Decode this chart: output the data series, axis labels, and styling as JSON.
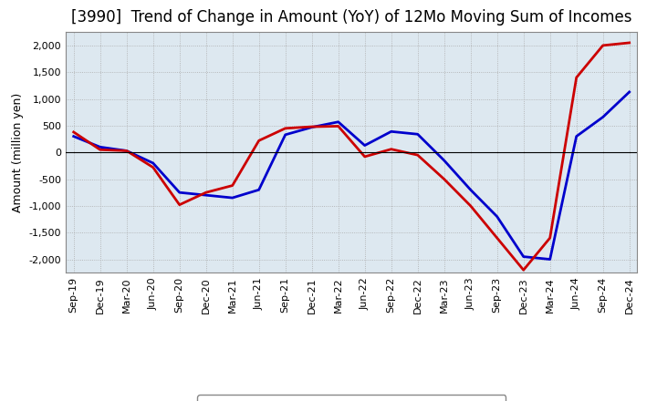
{
  "title": "[3990]  Trend of Change in Amount (YoY) of 12Mo Moving Sum of Incomes",
  "ylabel": "Amount (million yen)",
  "x_labels": [
    "Sep-19",
    "Dec-19",
    "Mar-20",
    "Jun-20",
    "Sep-20",
    "Dec-20",
    "Mar-21",
    "Jun-21",
    "Sep-21",
    "Dec-21",
    "Mar-22",
    "Jun-22",
    "Sep-22",
    "Dec-22",
    "Mar-23",
    "Jun-23",
    "Sep-23",
    "Dec-23",
    "Mar-24",
    "Jun-24",
    "Sep-24",
    "Dec-24"
  ],
  "ordinary_income": [
    300,
    100,
    30,
    -200,
    -750,
    -800,
    -850,
    -700,
    330,
    470,
    570,
    130,
    390,
    340,
    -150,
    -700,
    -1200,
    -1950,
    -2000,
    300,
    660,
    1130
  ],
  "net_income": [
    380,
    50,
    30,
    -280,
    -980,
    -750,
    -620,
    220,
    450,
    480,
    490,
    -80,
    60,
    -50,
    -500,
    -1000,
    -1600,
    -2200,
    -1600,
    1400,
    2000,
    2050
  ],
  "ordinary_color": "#0000cc",
  "net_color": "#cc0000",
  "ylim": [
    -2250,
    2250
  ],
  "yticks": [
    -2000,
    -1500,
    -1000,
    -500,
    0,
    500,
    1000,
    1500,
    2000
  ],
  "background_color": "#ffffff",
  "plot_bg_color": "#dde8f0",
  "grid_color": "#aaaaaa",
  "title_fontsize": 12,
  "axis_fontsize": 9,
  "tick_fontsize": 8,
  "legend_fontsize": 10
}
